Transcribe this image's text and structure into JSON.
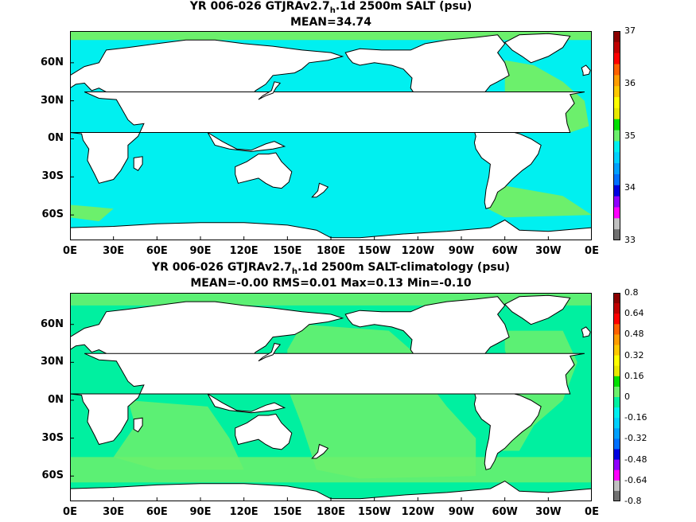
{
  "panels": [
    {
      "title_pre": "YR 006-026 GTJRAv2.7",
      "title_sub": "h",
      "title_post": ".1d 2500m SALT (psu)",
      "stats": "MEAN=34.74",
      "colorbar": {
        "ticks": [
          "37",
          "36",
          "35",
          "34",
          "33"
        ],
        "colors": [
          "#8b0000",
          "#c00000",
          "#ff0000",
          "#ff6000",
          "#ff9c00",
          "#ffc800",
          "#ffff00",
          "#e8e800",
          "#00e000",
          "#6cf06c",
          "#00f0f0",
          "#00d0ff",
          "#00a0ff",
          "#0070ff",
          "#0000e0",
          "#9000ff",
          "#ff00ff",
          "#c0c0c0",
          "#707070"
        ],
        "levels": [
          37,
          36.8,
          36.6,
          36.4,
          36.2,
          36,
          35.8,
          35.6,
          35.4,
          35.2,
          35,
          34.8,
          34.6,
          34.4,
          34.2,
          34,
          33.8,
          33.6,
          33.4,
          33
        ]
      },
      "fill_ocean": "#00f0f0",
      "fill_alt": "#6cf06c"
    },
    {
      "title_pre": "YR 006-026 GTJRAv2.7",
      "title_sub": "h",
      "title_post": ".1d 2500m SALT-climatology (psu)",
      "stats": "MEAN=-0.00   RMS=0.01   Max=0.13   Min=-0.10",
      "colorbar": {
        "ticks": [
          "0.8",
          "0.64",
          "0.48",
          "0.32",
          "0.16",
          "0",
          "-0.16",
          "-0.32",
          "-0.48",
          "-0.64",
          "-0.8"
        ],
        "colors": [
          "#8b0000",
          "#c00000",
          "#ff0000",
          "#ff6000",
          "#ff9c00",
          "#ffc800",
          "#ffff00",
          "#e8e800",
          "#00e000",
          "#6cf06c",
          "#00f0a0",
          "#00f0f0",
          "#00d0ff",
          "#00a0ff",
          "#0070ff",
          "#0000e0",
          "#9000ff",
          "#ff00ff",
          "#c0c0c0",
          "#707070"
        ],
        "levels": [
          0.8,
          0.72,
          0.64,
          0.56,
          0.48,
          0.4,
          0.32,
          0.24,
          0.16,
          0.08,
          0,
          -0.08,
          -0.16,
          -0.24,
          -0.32,
          -0.4,
          -0.48,
          -0.56,
          -0.64,
          -0.72,
          -0.8
        ]
      },
      "fill_ocean": "#00f0a0",
      "fill_alt": "#6cf06c"
    }
  ],
  "axes": {
    "lon_labels": [
      "0E",
      "30E",
      "60E",
      "90E",
      "120E",
      "150E",
      "180E",
      "150W",
      "120W",
      "90W",
      "60W",
      "30W",
      "0E"
    ],
    "lat_labels": [
      "60N",
      "30N",
      "0N",
      "30S",
      "60S"
    ],
    "lat_values": [
      60,
      30,
      0,
      -30,
      -60
    ],
    "lon_range": [
      0,
      360
    ],
    "lat_range": [
      -80,
      85
    ]
  }
}
